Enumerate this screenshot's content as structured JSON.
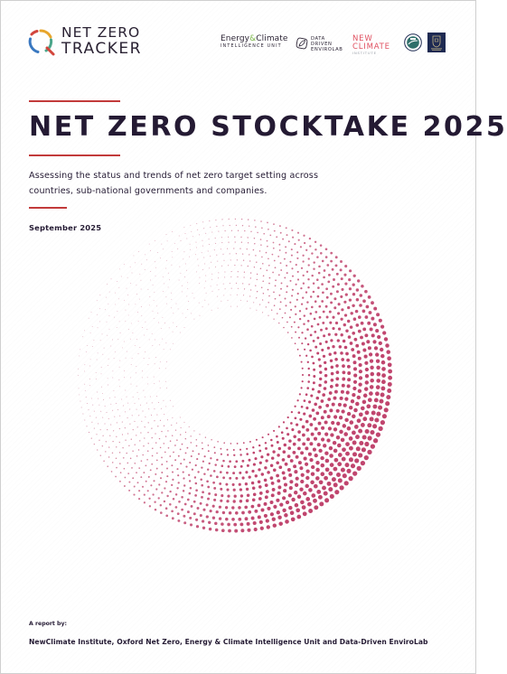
{
  "header": {
    "logo_line1": "NET ZERO",
    "logo_line2": "TRACKER",
    "partners": {
      "eciu_name_a": "Energy",
      "eciu_amp": "&",
      "eciu_name_b": "Climate",
      "eciu_sub": "INTELLIGENCE UNIT",
      "dde_line1": "DATA",
      "dde_line2": "DRIVEN",
      "dde_line3": "ENVIROLAB",
      "nci_line1": "NEW",
      "nci_line2": "CLIMATE",
      "nci_line3": "INSTITUTE"
    }
  },
  "title": "NET ZERO STOCKTAKE 2025",
  "subtitle": "Assessing the status and trends of net zero target setting across countries, sub-national governments and companies.",
  "date": "September 2025",
  "footer": {
    "report_by": "A report by:",
    "authors": "NewClimate Institute, Oxford Net Zero, Energy & Climate Intelligence Unit and Data-Driven EnviroLab"
  },
  "colors": {
    "accent": "#c23a3a",
    "dots": "#c0456e",
    "text": "#241a33"
  }
}
